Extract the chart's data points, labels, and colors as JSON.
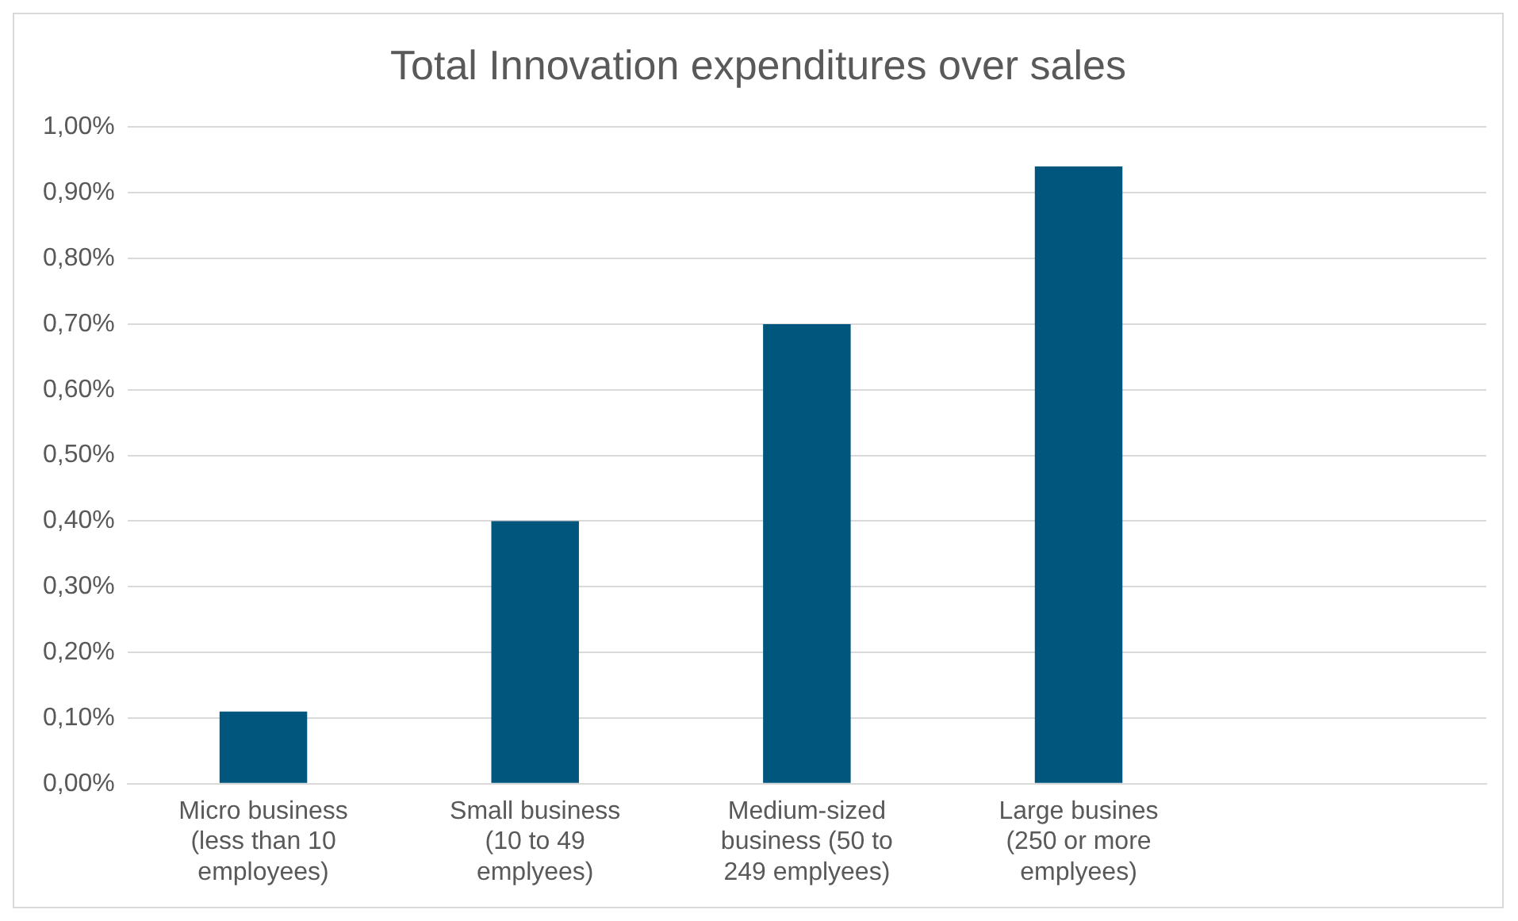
{
  "chart_data": {
    "type": "bar",
    "title": "Total Innovation expenditures over sales",
    "categories": [
      "Micro business (less than 10 employees)",
      "Small business (10 to 49 emplyees)",
      "Medium-sized business (50 to 249 emplyees)",
      "Large busines (250 or more emplyees)",
      null
    ],
    "values": [
      0.11,
      0.4,
      0.7,
      0.94,
      null
    ],
    "color": "#00567c",
    "ylim": [
      0,
      1
    ],
    "yticks": [
      {
        "value": 0,
        "label": "0,00%"
      },
      {
        "value": 0.1,
        "label": "0,10%"
      },
      {
        "value": 0.2,
        "label": "0,20%"
      },
      {
        "value": 0.3,
        "label": "0,30%"
      },
      {
        "value": 0.4,
        "label": "0,40%"
      },
      {
        "value": 0.5,
        "label": "0,50%"
      },
      {
        "value": 0.6,
        "label": "0,60%"
      },
      {
        "value": 0.7,
        "label": "0,70%"
      },
      {
        "value": 0.8,
        "label": "0,80%"
      },
      {
        "value": 0.9,
        "label": "0,90%"
      },
      {
        "value": 1,
        "label": "1,00%"
      }
    ],
    "grid": "y",
    "legend": false
  }
}
